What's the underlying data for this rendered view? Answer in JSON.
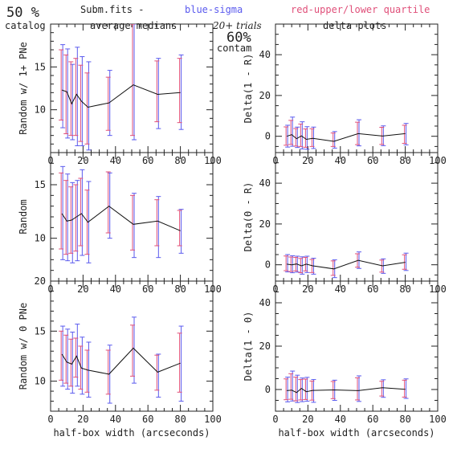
{
  "header": {
    "pct_value": "50 %",
    "catalog_label": "catalog",
    "subm_label": "Subm.fits  -",
    "blue_label": "blue-sigma",
    "red_label": "red-upper/lower quartile",
    "avg_label": "average medians",
    "trials_label": "20+ trials",
    "contam_value": "60%",
    "contam_label": "contam",
    "delta_plots_label": "delta plots"
  },
  "colors": {
    "blue": "#5a5aee",
    "red": "#e0507a",
    "line": "#111111",
    "axis": "#222222"
  },
  "xlabel": "half-box width (arcseconds)",
  "x": [
    7,
    10,
    13,
    16,
    19,
    23,
    36,
    51,
    66,
    80
  ],
  "chart_data": [
    {
      "type": "line",
      "panel": "left-top",
      "ylabel": "Random w/ 1+ PNe",
      "xlabel": "",
      "xlim": [
        0,
        100
      ],
      "ylim": [
        5,
        20
      ],
      "xticks": [
        "0",
        "20",
        "40",
        "60",
        "80",
        "100"
      ],
      "yticks": [
        [
          "10",
          10
        ],
        [
          "15",
          15
        ]
      ],
      "series": [
        {
          "values": [
            12.3,
            12.1,
            10.7,
            11.8,
            11.0,
            10.3,
            10.8,
            12.9,
            11.8,
            12.0
          ],
          "sigma_low": [
            7.9,
            6.7,
            6.5,
            5.8,
            5.8,
            5.3,
            7.0,
            6.5,
            7.8,
            7.7
          ],
          "sigma_high": [
            17.6,
            17.1,
            15.3,
            17.3,
            16.2,
            15.6,
            14.6,
            20.0,
            16.0,
            16.4
          ],
          "q_low": [
            8.8,
            7.2,
            7.0,
            7.0,
            6.3,
            6.0,
            7.6,
            7.0,
            8.6,
            8.5
          ],
          "q_high": [
            17.0,
            16.4,
            15.6,
            16.0,
            15.2,
            14.3,
            13.8,
            20.0,
            15.7,
            16.0
          ]
        }
      ]
    },
    {
      "type": "line",
      "panel": "left-middle",
      "ylabel": "Random",
      "xlabel": "",
      "xlim": [
        0,
        100
      ],
      "ylim": [
        6,
        18
      ],
      "xticks": [
        "0",
        "20",
        "40",
        "60",
        "80",
        "100"
      ],
      "yticks": [
        [
          "10",
          10
        ],
        [
          "15",
          15
        ]
      ],
      "series": [
        {
          "values": [
            12.3,
            11.6,
            11.7,
            12.0,
            12.3,
            11.5,
            13.0,
            11.3,
            11.6,
            10.7
          ],
          "sigma_low": [
            8.0,
            7.9,
            7.7,
            7.9,
            8.4,
            7.7,
            10.0,
            8.2,
            8.2,
            8.6
          ],
          "sigma_high": [
            16.7,
            16.0,
            15.2,
            15.4,
            16.4,
            15.3,
            16.1,
            14.2,
            13.9,
            12.7
          ],
          "q_low": [
            9.0,
            8.5,
            8.6,
            8.8,
            9.3,
            8.5,
            10.5,
            8.9,
            9.3,
            9.3
          ],
          "q_high": [
            16.1,
            15.4,
            14.8,
            15.0,
            15.6,
            14.5,
            16.2,
            14.0,
            13.6,
            12.6
          ]
        }
      ]
    },
    {
      "type": "line",
      "panel": "left-bottom",
      "ylabel": "Random w/ 0 PNe",
      "xlabel": "half-box width (arcseconds)",
      "xlim": [
        0,
        100
      ],
      "ylim": [
        7,
        20
      ],
      "xticks": [
        "0",
        "20",
        "40",
        "60",
        "80",
        "100"
      ],
      "yticks": [
        [
          "10",
          10
        ],
        [
          "15",
          15
        ],
        [
          "20",
          20
        ]
      ],
      "series": [
        {
          "values": [
            12.7,
            11.9,
            11.7,
            12.5,
            11.3,
            11.1,
            10.7,
            13.3,
            10.9,
            11.8
          ],
          "sigma_low": [
            9.5,
            9.2,
            8.8,
            9.5,
            8.7,
            8.4,
            7.8,
            9.8,
            8.4,
            8.0
          ],
          "sigma_high": [
            15.5,
            15.2,
            14.9,
            15.7,
            14.4,
            13.9,
            13.6,
            16.4,
            12.7,
            15.5
          ],
          "q_low": [
            10.1,
            9.8,
            9.5,
            10.4,
            9.2,
            8.9,
            8.7,
            10.5,
            9.1,
            8.9
          ],
          "q_high": [
            15.0,
            14.6,
            14.2,
            14.3,
            13.5,
            13.1,
            13.1,
            15.6,
            12.6,
            14.8
          ]
        }
      ]
    },
    {
      "type": "line",
      "panel": "right-top",
      "ylabel": "Delta(1 - R)",
      "xlabel": "",
      "xlim": [
        0,
        100
      ],
      "ylim": [
        -8,
        55
      ],
      "xticks": [
        "0",
        "20",
        "40",
        "60",
        "80",
        "100"
      ],
      "yticks": [
        [
          "0",
          0
        ],
        [
          "20",
          20
        ],
        [
          "40",
          40
        ]
      ],
      "series": [
        {
          "values": [
            0.0,
            0.8,
            -1.2,
            0.2,
            -1.5,
            -1.0,
            -2.5,
            1.3,
            0.1,
            1.3
          ],
          "sigma_low": [
            -5.3,
            -4.9,
            -5.5,
            -6.2,
            -6.4,
            -6.0,
            -5.8,
            -4.7,
            -4.6,
            -4.2
          ],
          "sigma_high": [
            5.4,
            9.4,
            4.5,
            7.1,
            4.7,
            4.5,
            2.3,
            8.1,
            5.1,
            6.3
          ],
          "q_low": [
            -4.4,
            -4.0,
            -4.8,
            -5.0,
            -5.4,
            -5.0,
            -5.0,
            -4.1,
            -4.0,
            -3.5
          ],
          "q_high": [
            4.6,
            7.8,
            3.8,
            6.0,
            3.6,
            3.7,
            1.6,
            6.9,
            4.4,
            5.4
          ]
        }
      ]
    },
    {
      "type": "line",
      "panel": "right-middle",
      "ylabel": "Delta(0 - R)",
      "xlabel": "",
      "xlim": [
        0,
        100
      ],
      "ylim": [
        -8,
        55
      ],
      "xticks": [
        "0",
        "20",
        "40",
        "60",
        "80",
        "100"
      ],
      "yticks": [
        [
          "0",
          0
        ],
        [
          "20",
          20
        ],
        [
          "40",
          40
        ]
      ],
      "series": [
        {
          "values": [
            0.3,
            0.0,
            0.4,
            -0.5,
            0.3,
            -0.5,
            -2.0,
            2.2,
            -0.5,
            1.2
          ],
          "sigma_low": [
            -3.5,
            -3.9,
            -3.6,
            -4.6,
            -3.8,
            -4.6,
            -6.3,
            -1.8,
            -4.2,
            -2.8
          ],
          "sigma_high": [
            5.0,
            4.4,
            4.2,
            3.9,
            4.2,
            3.2,
            2.4,
            6.3,
            2.9,
            5.7
          ],
          "q_low": [
            -2.9,
            -3.3,
            -3.0,
            -3.9,
            -3.0,
            -3.8,
            -5.2,
            -1.2,
            -3.6,
            -2.2
          ],
          "q_high": [
            4.3,
            3.8,
            3.6,
            3.1,
            3.6,
            2.6,
            1.9,
            5.4,
            2.3,
            4.9
          ]
        }
      ]
    },
    {
      "type": "line",
      "panel": "right-bottom",
      "ylabel": "Delta(1 - 0)",
      "xlabel": "half-box width (arcseconds)",
      "xlim": [
        0,
        100
      ],
      "ylim": [
        -10,
        50
      ],
      "xticks": [
        "0",
        "20",
        "40",
        "60",
        "80",
        "100"
      ],
      "yticks": [
        [
          "0",
          0
        ],
        [
          "20",
          20
        ],
        [
          "40",
          40
        ]
      ],
      "series": [
        {
          "values": [
            -0.5,
            -0.3,
            -1.4,
            0.5,
            -1.0,
            -0.4,
            -0.2,
            -0.5,
            0.8,
            0.1
          ],
          "sigma_low": [
            -5.7,
            -5.3,
            -6.0,
            -5.6,
            -5.4,
            -5.9,
            -5.0,
            -5.5,
            -3.6,
            -4.1
          ],
          "sigma_high": [
            5.7,
            8.5,
            6.6,
            5.3,
            5.6,
            4.6,
            4.3,
            6.3,
            4.5,
            4.9
          ],
          "q_low": [
            -4.7,
            -4.5,
            -5.2,
            -4.8,
            -4.6,
            -4.9,
            -4.2,
            -4.8,
            -3.0,
            -3.5
          ],
          "q_high": [
            4.9,
            7.3,
            5.7,
            4.6,
            4.8,
            3.9,
            3.7,
            5.4,
            3.8,
            4.3
          ]
        }
      ]
    }
  ]
}
